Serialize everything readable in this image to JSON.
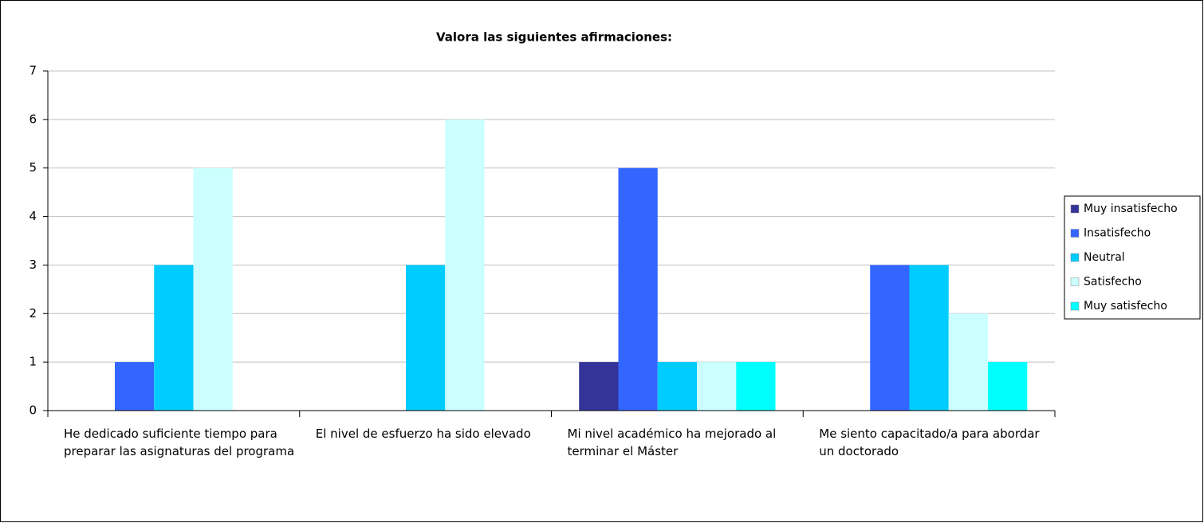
{
  "chart_data": {
    "type": "bar",
    "title": "Valora las siguientes afirmaciones:",
    "categories": [
      "He dedicado suficiente tiempo para preparar las asignaturas del programa",
      "El nivel de esfuerzo ha sido elevado",
      "Mi nivel académico ha mejorado al terminar el Máster",
      "Me siento capacitado/a para abordar un doctorado"
    ],
    "series": [
      {
        "name": "Muy insatisfecho",
        "color": "#333399",
        "values": [
          0,
          0,
          1,
          0
        ]
      },
      {
        "name": "Insatisfecho",
        "color": "#3366FF",
        "values": [
          1,
          0,
          5,
          3
        ]
      },
      {
        "name": "Neutral",
        "color": "#00CCFF",
        "values": [
          3,
          3,
          1,
          3
        ]
      },
      {
        "name": "Satisfecho",
        "color": "#CCFFFF",
        "values": [
          5,
          6,
          1,
          2
        ]
      },
      {
        "name": "Muy satisfecho",
        "color": "#00FFFF",
        "values": [
          0,
          0,
          1,
          1
        ]
      }
    ],
    "ylim": [
      0,
      7
    ],
    "yticks": [
      0,
      1,
      2,
      3,
      4,
      5,
      6,
      7
    ],
    "grid": true,
    "legend": "right"
  }
}
